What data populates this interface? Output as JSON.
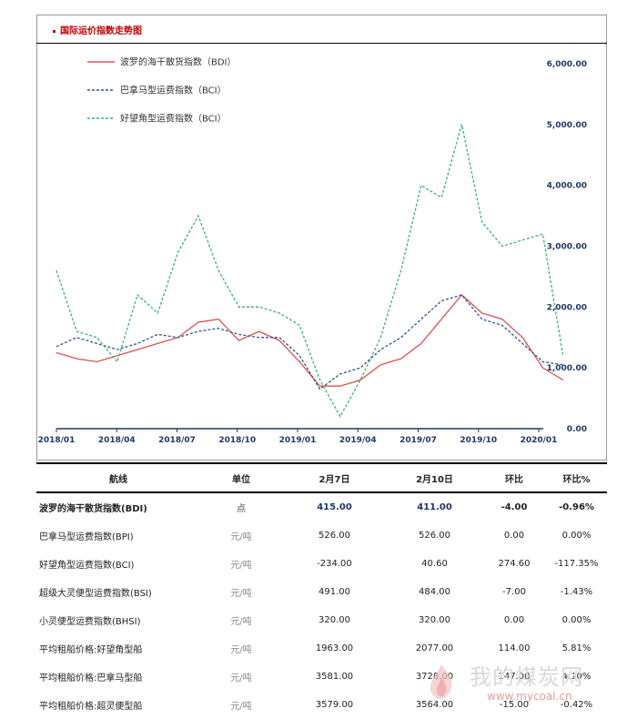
{
  "chart_title": "国际运价指数走势图",
  "chart_data": {
    "type": "line",
    "legend_position": "top-left",
    "ylim": [
      0,
      6000
    ],
    "yticks": [
      "0.00",
      "1,000.00",
      "2,000.00",
      "3,000.00",
      "4,000.00",
      "5,000.00",
      "6,000.00"
    ],
    "xticks": [
      "2018/01",
      "2018/04",
      "2018/07",
      "2018/10",
      "2019/01",
      "2019/04",
      "2019/07",
      "2019/10",
      "2020/01"
    ],
    "x": [
      "2018/01",
      "2018/02",
      "2018/03",
      "2018/04",
      "2018/05",
      "2018/06",
      "2018/07",
      "2018/08",
      "2018/09",
      "2018/10",
      "2018/11",
      "2018/12",
      "2019/01",
      "2019/02",
      "2019/03",
      "2019/04",
      "2019/05",
      "2019/06",
      "2019/07",
      "2019/08",
      "2019/09",
      "2019/10",
      "2019/11",
      "2019/12",
      "2020/01",
      "2020/02"
    ],
    "series": [
      {
        "name": "波罗的海干散货指数（BDI）",
        "color": "#e05050",
        "dash": "",
        "values": [
          1250,
          1150,
          1100,
          1200,
          1300,
          1400,
          1500,
          1750,
          1800,
          1450,
          1600,
          1450,
          1100,
          700,
          700,
          800,
          1050,
          1150,
          1400,
          1800,
          2200,
          1900,
          1800,
          1500,
          1000,
          800
        ]
      },
      {
        "name": "巴拿马型运费指数（BCI）",
        "color": "#2f5597",
        "dash": "3,2",
        "values": [
          1350,
          1500,
          1400,
          1300,
          1400,
          1550,
          1500,
          1600,
          1650,
          1550,
          1500,
          1500,
          1200,
          650,
          900,
          1000,
          1300,
          1500,
          1800,
          2100,
          2200,
          1800,
          1700,
          1400,
          1100,
          1050
        ]
      },
      {
        "name": "好望角型运费指数（BCI）",
        "color": "#3cb371",
        "dash": "3,2",
        "values": [
          2600,
          1600,
          1500,
          1100,
          2200,
          1900,
          2900,
          3500,
          2600,
          2000,
          2000,
          1900,
          1700,
          800,
          200,
          800,
          1500,
          2600,
          4000,
          3800,
          5000,
          3400,
          3000,
          3100,
          3200,
          1200
        ]
      }
    ]
  },
  "table": {
    "headers": [
      "航线",
      "单位",
      "2月7日",
      "2月10日",
      "环比",
      "环比%"
    ],
    "rows": [
      {
        "name": "波罗的海干散货指数(BDI)",
        "unit": "点",
        "feb7": "415.00",
        "feb10": "411.00",
        "chg": "-4.00",
        "pct": "-0.96%"
      },
      {
        "name": "巴拿马型运费指数(BPI)",
        "unit": "元/吨",
        "feb7": "526.00",
        "feb10": "526.00",
        "chg": "0.00",
        "pct": "0.00%"
      },
      {
        "name": "好望角型运费指数(BCI)",
        "unit": "元/吨",
        "feb7": "-234.00",
        "feb10": "40.60",
        "chg": "274.60",
        "pct": "-117.35%"
      },
      {
        "name": "超级大灵便型运费指数(BSI)",
        "unit": "元/吨",
        "feb7": "491.00",
        "feb10": "484.00",
        "chg": "-7.00",
        "pct": "-1.43%"
      },
      {
        "name": "小灵便型运费指数(BHSI)",
        "unit": "元/吨",
        "feb7": "320.00",
        "feb10": "320.00",
        "chg": "0.00",
        "pct": "0.00%"
      },
      {
        "name": "平均租船价格:好望角型船",
        "unit": "元/吨",
        "feb7": "1963.00",
        "feb10": "2077.00",
        "chg": "114.00",
        "pct": "5.81%"
      },
      {
        "name": "平均租船价格:巴拿马型船",
        "unit": "元/吨",
        "feb7": "3581.00",
        "feb10": "3728.00",
        "chg": "147.00",
        "pct": "4.10%"
      },
      {
        "name": "平均租船价格:超灵便型船",
        "unit": "元/吨",
        "feb7": "3579.00",
        "feb10": "3564.00",
        "chg": "-15.00",
        "pct": "-0.42%"
      }
    ]
  },
  "watermark": {
    "text": "我的煤炭网",
    "url": "www.mycoal.cn"
  }
}
